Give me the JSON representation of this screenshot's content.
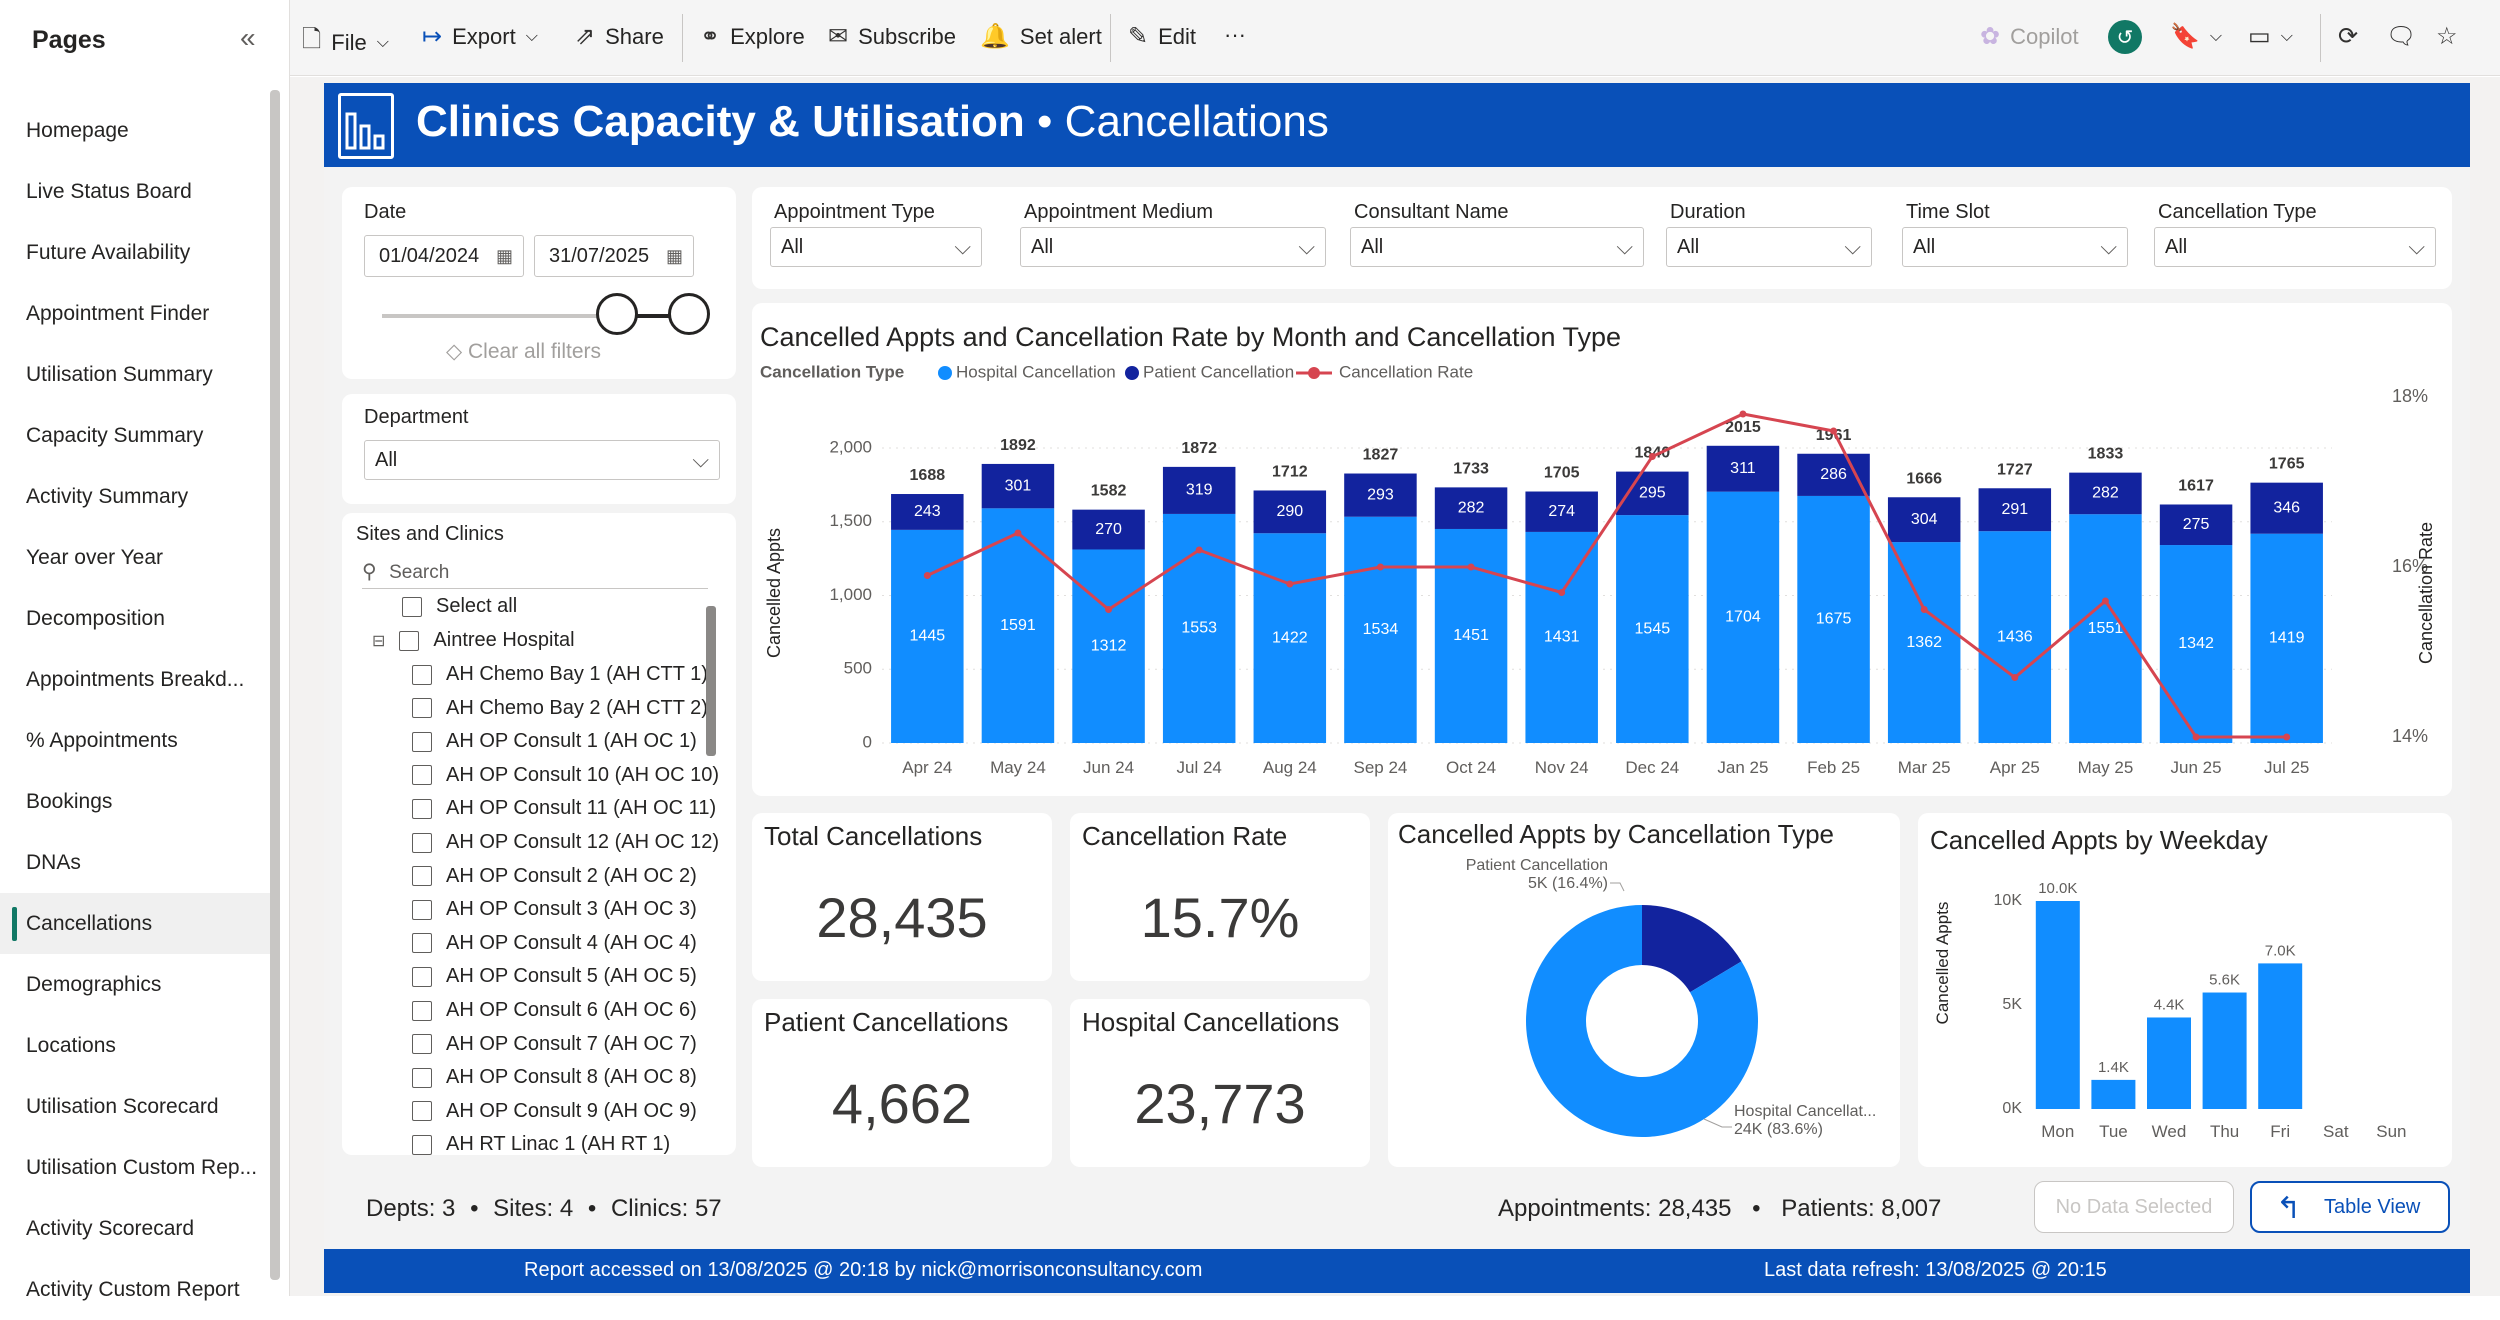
{
  "pages_panel": {
    "title": "Pages",
    "items": [
      "Homepage",
      "Live Status Board",
      "Future Availability",
      "Appointment Finder",
      "Utilisation Summary",
      "Capacity Summary",
      "Activity Summary",
      "Year over Year",
      "Decomposition",
      "Appointments Breakd...",
      "% Appointments",
      "Bookings",
      "DNAs",
      "Cancellations",
      "Demographics",
      "Locations",
      "Utilisation Scorecard",
      "Utilisation Custom Rep...",
      "Activity Scorecard",
      "Activity Custom Report"
    ],
    "active": "Cancellations"
  },
  "toolbar": {
    "file": "File",
    "export": "Export",
    "share": "Share",
    "explore": "Explore",
    "subscribe": "Subscribe",
    "set_alert": "Set alert",
    "edit": "Edit",
    "more": "···",
    "copilot": "Copilot"
  },
  "banner": {
    "title_bold": "Clinics Capacity & Utilisation",
    "title_rest": " • Cancellations"
  },
  "date_filter": {
    "label": "Date",
    "start": "01/04/2024",
    "end": "31/07/2025",
    "clear": "Clear all filters"
  },
  "department_filter": {
    "label": "Department",
    "value": "All"
  },
  "sites_filter": {
    "label": "Sites and Clinics",
    "search_placeholder": "Search",
    "select_all": "Select all",
    "parent": "Aintree Hospital",
    "items": [
      "AH Chemo Bay 1 (AH CTT 1)",
      "AH Chemo Bay 2 (AH CTT 2)",
      "AH OP Consult 1 (AH OC 1)",
      "AH OP Consult 10 (AH OC 10)",
      "AH OP Consult 11 (AH OC 11)",
      "AH OP Consult 12 (AH OC 12)",
      "AH OP Consult 2 (AH OC 2)",
      "AH OP Consult 3 (AH OC 3)",
      "AH OP Consult 4 (AH OC 4)",
      "AH OP Consult 5 (AH OC 5)",
      "AH OP Consult 6 (AH OC 6)",
      "AH OP Consult 7 (AH OC 7)",
      "AH OP Consult 8 (AH OC 8)",
      "AH OP Consult 9 (AH OC 9)",
      "AH RT Linac 1 (AH RT 1)"
    ]
  },
  "slicers": [
    {
      "label": "Appointment Type",
      "value": "All"
    },
    {
      "label": "Appointment Medium",
      "value": "All"
    },
    {
      "label": "Consultant Name",
      "value": "All"
    },
    {
      "label": "Duration",
      "value": "All"
    },
    {
      "label": "Time Slot",
      "value": "All"
    },
    {
      "label": "Cancellation Type",
      "value": "All"
    }
  ],
  "chart_main": {
    "title": "Cancelled Appts and Cancellation Rate by Month and Cancellation Type",
    "legend_title": "Cancellation Type",
    "legend": [
      "Hospital Cancellation",
      "Patient Cancellation",
      "Cancellation Rate"
    ]
  },
  "kpis": {
    "total_title": "Total Cancellations",
    "total_value": "28,435",
    "rate_title": "Cancellation Rate",
    "rate_value": "15.7%",
    "patient_title": "Patient Cancellations",
    "patient_value": "4,662",
    "hospital_title": "Hospital Cancellations",
    "hospital_value": "23,773"
  },
  "donut": {
    "title": "Cancelled Appts by Cancellation Type",
    "patient_label": "Patient Cancellation",
    "patient_value": "5K (16.4%)",
    "hospital_label": "Hospital Cancellat...",
    "hospital_value": "24K (83.6%)"
  },
  "weekday": {
    "title": "Cancelled Appts by Weekday"
  },
  "footer": {
    "depts": "Depts: 3",
    "sites": "Sites: 4",
    "clinics": "Clinics: 57",
    "dot": "•",
    "appointments": "Appointments: 28,435",
    "patients": "Patients: 8,007",
    "no_data": "No Data Selected",
    "table_view": "Table View",
    "accessed": "Report accessed on 13/08/2025 @ 20:18 by nick@morrisonconsultancy.com",
    "refresh": "Last data refresh: 13/08/2025 @ 20:15"
  },
  "colors": {
    "hospital": "#118dff",
    "patient": "#12239e",
    "rate": "#d64550",
    "brand": "#0950b8"
  },
  "chart_data": [
    {
      "type": "bar",
      "stacked": true,
      "title": "Cancelled Appts and Cancellation Rate by Month and Cancellation Type",
      "categories": [
        "Apr 24",
        "May 24",
        "Jun 24",
        "Jul 24",
        "Aug 24",
        "Sep 24",
        "Oct 24",
        "Nov 24",
        "Dec 24",
        "Jan 25",
        "Feb 25",
        "Mar 25",
        "Apr 25",
        "May 25",
        "Jun 25",
        "Jul 25"
      ],
      "series": [
        {
          "name": "Hospital Cancellation",
          "values": [
            1445,
            1591,
            1312,
            1553,
            1422,
            1534,
            1451,
            1431,
            1545,
            1704,
            1675,
            1362,
            1436,
            1551,
            1342,
            1419
          ]
        },
        {
          "name": "Patient Cancellation",
          "values": [
            243,
            301,
            270,
            319,
            290,
            293,
            282,
            274,
            295,
            311,
            286,
            304,
            291,
            282,
            275,
            346
          ]
        },
        {
          "name": "Cancellation Rate",
          "type": "line",
          "axis": "right",
          "values": [
            15.9,
            16.4,
            15.5,
            16.2,
            15.8,
            16.0,
            16.0,
            15.7,
            17.3,
            17.8,
            17.6,
            15.5,
            14.7,
            15.6,
            14.0,
            14.0
          ]
        }
      ],
      "totals": [
        1688,
        1892,
        1582,
        1872,
        1712,
        1827,
        1733,
        1705,
        1840,
        2015,
        1961,
        1666,
        1727,
        1833,
        1617,
        1765
      ],
      "ylabel": "Cancelled Appts",
      "y2label": "Cancellation Rate",
      "yticks": [
        "0",
        "500",
        "1,000",
        "1,500",
        "2,000"
      ],
      "y2ticks": [
        "14%",
        "16%",
        "18%"
      ],
      "ylim": [
        0,
        2000
      ],
      "y2lim": [
        14,
        18
      ]
    },
    {
      "type": "pie",
      "donut": true,
      "title": "Cancelled Appts by Cancellation Type",
      "labels": [
        "Patient Cancellation",
        "Hospital Cancellation"
      ],
      "values": [
        16.4,
        83.6
      ]
    },
    {
      "type": "bar",
      "title": "Cancelled Appts by Weekday",
      "categories": [
        "Mon",
        "Tue",
        "Wed",
        "Thu",
        "Fri",
        "Sat",
        "Sun"
      ],
      "values": [
        10.0,
        1.4,
        4.4,
        5.6,
        7.0,
        0,
        0
      ],
      "labels": [
        "10.0K",
        "1.4K",
        "4.4K",
        "5.6K",
        "7.0K",
        "",
        ""
      ],
      "ylabel": "Cancelled Appts",
      "yticks": [
        "0K",
        "5K",
        "10K"
      ],
      "ylim": [
        0,
        10
      ]
    }
  ]
}
